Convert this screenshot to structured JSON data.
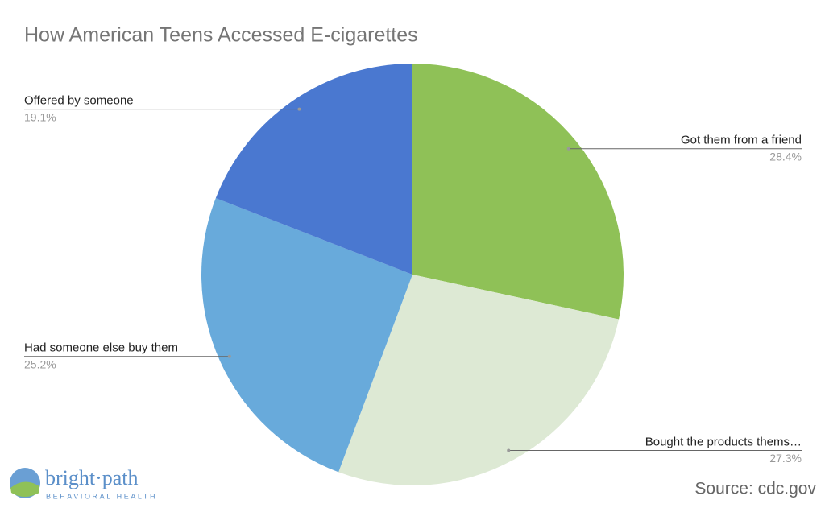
{
  "chart_data": {
    "type": "pie",
    "title": "How American Teens Accessed E-cigarettes",
    "categories": [
      "Got them from a friend",
      "Bought the products thems…",
      "Had someone else buy them",
      "Offered by someone"
    ],
    "values": [
      28.4,
      27.3,
      25.2,
      19.1
    ],
    "value_labels": [
      "28.4%",
      "27.3%",
      "25.2%",
      "19.1%"
    ],
    "colors": [
      "#8fc157",
      "#dde9d4",
      "#68aadb",
      "#4a78d0"
    ]
  },
  "footer": {
    "source": "Source: cdc.gov",
    "logo_name": "bright·path",
    "logo_tagline": "BEHAVIORAL HEALTH"
  }
}
